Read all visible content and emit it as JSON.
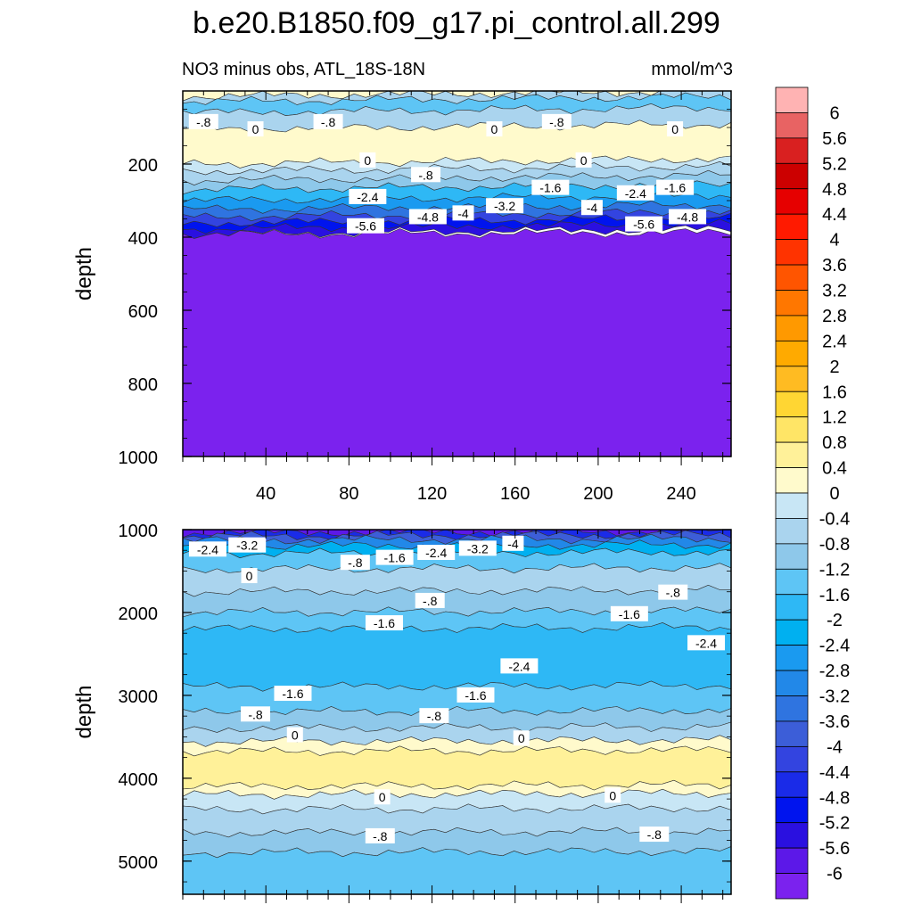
{
  "title": "b.e20.B1850.f09_g17.pi_control.all.299",
  "subtitle_left": "NO3 minus obs, ATL_18S-18N",
  "subtitle_right": "mmol/m^3",
  "chart_data": [
    {
      "type": "heatmap",
      "panel": "upper",
      "ylabel": "depth",
      "y_reversed": true,
      "ylim": [
        0,
        1000
      ],
      "xlim": [
        0,
        264
      ],
      "x_ticks": [
        40,
        80,
        120,
        160,
        200,
        240
      ],
      "y_ticks": [
        200,
        400,
        600,
        800,
        1000
      ],
      "bands": [
        {
          "from": 0,
          "to": 15,
          "value": 0.2
        },
        {
          "from": 15,
          "to": 30,
          "value": -0.6
        },
        {
          "from": 30,
          "to": 60,
          "value": -1.4
        },
        {
          "from": 60,
          "to": 105,
          "value": -0.6
        },
        {
          "from": 105,
          "to": 200,
          "value": 0.4
        },
        {
          "from": 200,
          "to": 220,
          "value": -0.2
        },
        {
          "from": 220,
          "to": 245,
          "value": -0.6
        },
        {
          "from": 245,
          "to": 270,
          "value": -1.0
        },
        {
          "from": 270,
          "to": 300,
          "value": -1.8
        },
        {
          "from": 300,
          "to": 325,
          "value": -2.6
        },
        {
          "from": 325,
          "to": 345,
          "value": -3.4
        },
        {
          "from": 345,
          "to": 362,
          "value": -4.2
        },
        {
          "from": 362,
          "to": 378,
          "value": -5.0
        },
        {
          "from": 378,
          "to": 392,
          "value": -5.4
        },
        {
          "from": 392,
          "to": 1000,
          "value": -6.2
        }
      ],
      "contour_labels": [
        {
          "x": 10,
          "y": 85,
          "text": "-.8"
        },
        {
          "x": 35,
          "y": 105,
          "text": "0"
        },
        {
          "x": 70,
          "y": 85,
          "text": "-.8"
        },
        {
          "x": 150,
          "y": 105,
          "text": "0"
        },
        {
          "x": 180,
          "y": 85,
          "text": "-.8"
        },
        {
          "x": 237,
          "y": 105,
          "text": "0"
        },
        {
          "x": 89,
          "y": 190,
          "text": "0"
        },
        {
          "x": 193,
          "y": 190,
          "text": "0"
        },
        {
          "x": 117,
          "y": 230,
          "text": "-.8"
        },
        {
          "x": 89,
          "y": 290,
          "text": "-2.4"
        },
        {
          "x": 177,
          "y": 265,
          "text": "-1.6"
        },
        {
          "x": 218,
          "y": 280,
          "text": "-2.4"
        },
        {
          "x": 237,
          "y": 265,
          "text": "-1.6"
        },
        {
          "x": 155,
          "y": 315,
          "text": "-3.2"
        },
        {
          "x": 135,
          "y": 335,
          "text": "-4"
        },
        {
          "x": 197,
          "y": 320,
          "text": "-4"
        },
        {
          "x": 118,
          "y": 345,
          "text": "-4.8"
        },
        {
          "x": 88,
          "y": 370,
          "text": "-5.6"
        },
        {
          "x": 222,
          "y": 365,
          "text": "-5.6"
        },
        {
          "x": 243,
          "y": 345,
          "text": "-4.8"
        }
      ]
    },
    {
      "type": "heatmap",
      "panel": "lower",
      "ylabel": "depth",
      "y_reversed": true,
      "ylim": [
        1000,
        5400
      ],
      "xlim": [
        0,
        264
      ],
      "y_ticks": [
        1000,
        2000,
        3000,
        4000,
        5000
      ],
      "bands": [
        {
          "from": 1000,
          "to": 1040,
          "value": -5.8
        },
        {
          "from": 1040,
          "to": 1080,
          "value": -4.6
        },
        {
          "from": 1080,
          "to": 1130,
          "value": -3.8
        },
        {
          "from": 1130,
          "to": 1200,
          "value": -3.0
        },
        {
          "from": 1200,
          "to": 1290,
          "value": -2.2
        },
        {
          "from": 1290,
          "to": 1480,
          "value": -1.4
        },
        {
          "from": 1480,
          "to": 1750,
          "value": -0.6
        },
        {
          "from": 1750,
          "to": 2000,
          "value": -1.0
        },
        {
          "from": 2000,
          "to": 2200,
          "value": -1.4
        },
        {
          "from": 2200,
          "to": 2900,
          "value": -1.8
        },
        {
          "from": 2900,
          "to": 3200,
          "value": -1.4
        },
        {
          "from": 3200,
          "to": 3400,
          "value": -1.0
        },
        {
          "from": 3400,
          "to": 3560,
          "value": -0.6
        },
        {
          "from": 3560,
          "to": 3680,
          "value": 0.2
        },
        {
          "from": 3680,
          "to": 4100,
          "value": 0.6
        },
        {
          "from": 4100,
          "to": 4200,
          "value": 0.2
        },
        {
          "from": 4200,
          "to": 4380,
          "value": -0.2
        },
        {
          "from": 4380,
          "to": 4660,
          "value": -0.6
        },
        {
          "from": 4660,
          "to": 4900,
          "value": -1.0
        },
        {
          "from": 4900,
          "to": 5400,
          "value": -1.4
        }
      ],
      "contour_labels": [
        {
          "x": 12,
          "y": 1240,
          "text": "-2.4"
        },
        {
          "x": 31,
          "y": 1190,
          "text": "-3.2"
        },
        {
          "x": 32,
          "y": 1560,
          "text": "0"
        },
        {
          "x": 83,
          "y": 1400,
          "text": "-.8"
        },
        {
          "x": 102,
          "y": 1340,
          "text": "-1.6"
        },
        {
          "x": 122,
          "y": 1280,
          "text": "-2.4"
        },
        {
          "x": 142,
          "y": 1230,
          "text": "-3.2"
        },
        {
          "x": 159,
          "y": 1170,
          "text": "-4"
        },
        {
          "x": 119,
          "y": 1860,
          "text": "-.8"
        },
        {
          "x": 236,
          "y": 1760,
          "text": "-.8"
        },
        {
          "x": 97,
          "y": 2130,
          "text": "-1.6"
        },
        {
          "x": 215,
          "y": 2020,
          "text": "-1.6"
        },
        {
          "x": 252,
          "y": 2370,
          "text": "-2.4"
        },
        {
          "x": 162,
          "y": 2650,
          "text": "-2.4"
        },
        {
          "x": 53,
          "y": 2980,
          "text": "-1.6"
        },
        {
          "x": 141,
          "y": 3000,
          "text": "-1.6"
        },
        {
          "x": 35,
          "y": 3230,
          "text": "-.8"
        },
        {
          "x": 121,
          "y": 3250,
          "text": "-.8"
        },
        {
          "x": 54,
          "y": 3480,
          "text": "0"
        },
        {
          "x": 163,
          "y": 3520,
          "text": "0"
        },
        {
          "x": 96,
          "y": 4230,
          "text": "0"
        },
        {
          "x": 207,
          "y": 4210,
          "text": "0"
        },
        {
          "x": 95,
          "y": 4700,
          "text": "-.8"
        },
        {
          "x": 227,
          "y": 4680,
          "text": "-.8"
        }
      ]
    }
  ],
  "colorbar": {
    "labels": [
      "6",
      "5.6",
      "5.2",
      "4.8",
      "4.4",
      "4",
      "3.6",
      "3.2",
      "2.8",
      "2.4",
      "2",
      "1.6",
      "1.2",
      "0.8",
      "0.4",
      "0",
      "-0.4",
      "-0.8",
      "-1.2",
      "-1.6",
      "-2",
      "-2.4",
      "-2.8",
      "-3.2",
      "-3.6",
      "-4",
      "-4.4",
      "-4.8",
      "-5.2",
      "-5.6",
      "-6"
    ],
    "colors": [
      "#ffb3b3",
      "#e86363",
      "#d92020",
      "#cc0000",
      "#e60000",
      "#ff1a00",
      "#ff3300",
      "#ff5500",
      "#ff7700",
      "#ff9900",
      "#ffaa00",
      "#ffbb22",
      "#ffd633",
      "#ffe566",
      "#fff199",
      "#fffacc",
      "#c8e6f5",
      "#aad4ee",
      "#8ec8ea",
      "#5ec5f5",
      "#2eb8f5",
      "#00b0f0",
      "#1a9af0",
      "#2288e8",
      "#2f74e0",
      "#3c5ed8",
      "#3344e0",
      "#1a2be8",
      "#0014ee",
      "#2a10e0",
      "#5c18e8",
      "#7b22ee"
    ]
  }
}
